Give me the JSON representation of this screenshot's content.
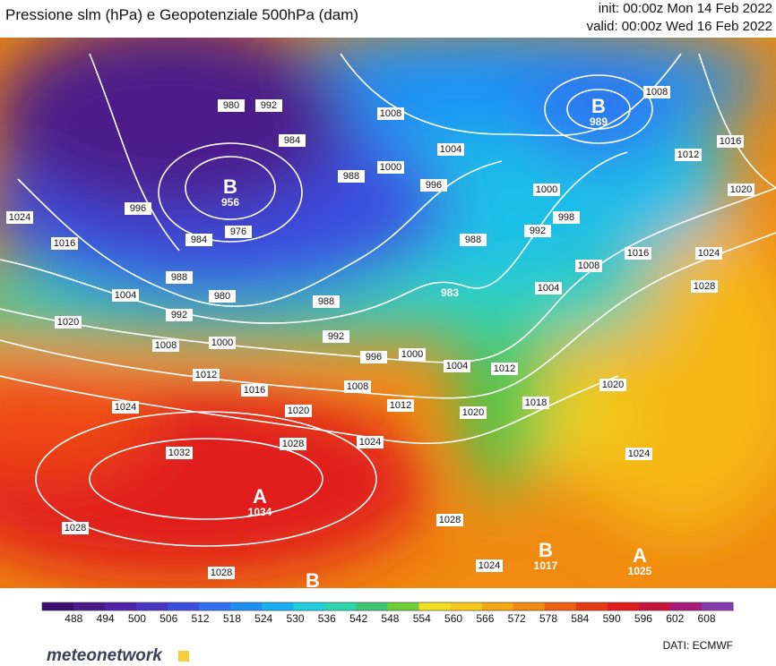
{
  "header": {
    "title": "Pressione slm (hPa) e Geopotenziale 500hPa (dam)",
    "init": "init: 00:00z Mon 14 Feb 2022",
    "valid": "valid: 00:00z Wed 16 Feb 2022"
  },
  "isobars": [
    980,
    992,
    984,
    988,
    1008,
    1004,
    1000,
    996,
    1000,
    998,
    992,
    988,
    1008,
    1004,
    1016,
    1024,
    1028,
    1012,
    1016,
    1020,
    1008,
    996,
    976,
    984,
    988,
    980,
    992,
    988,
    992,
    1000,
    996,
    1000,
    1004,
    1012,
    1018,
    1020,
    1020,
    1012,
    1008,
    1016,
    1020,
    1012,
    1008,
    1004,
    1020,
    1016,
    1024,
    1024,
    1028,
    1024,
    1032,
    1028,
    1028,
    1024,
    1028,
    1024
  ],
  "centers": [
    {
      "letter": "B",
      "value": 956
    },
    {
      "letter": "B",
      "value": 989
    },
    {
      "value": 983
    },
    {
      "letter": "A",
      "value": 1034
    },
    {
      "letter": "B",
      "value": 1017
    },
    {
      "letter": "A",
      "value": 1025
    },
    {
      "letter": "B"
    }
  ],
  "colorbar": {
    "ticks": [
      488,
      494,
      500,
      506,
      512,
      518,
      524,
      530,
      536,
      542,
      548,
      554,
      560,
      566,
      572,
      578,
      584,
      590,
      596,
      602,
      608
    ],
    "lim": [
      482,
      613
    ],
    "colors": [
      "#3a0f6e",
      "#4b1a8a",
      "#5123a8",
      "#4a34c4",
      "#3b4ee0",
      "#2f6ef0",
      "#1e90f5",
      "#18b0f0",
      "#1fcfe0",
      "#2ed6b0",
      "#3cc870",
      "#6ccf3a",
      "#f0e020",
      "#f7c91a",
      "#f5a814",
      "#f08a10",
      "#ee6010",
      "#e83a12",
      "#e01c1c",
      "#c8143c",
      "#a81a7a",
      "#8a3ab0"
    ]
  },
  "footer": {
    "logo": "meteonetwork",
    "source": "DATI:  ECMWF"
  }
}
